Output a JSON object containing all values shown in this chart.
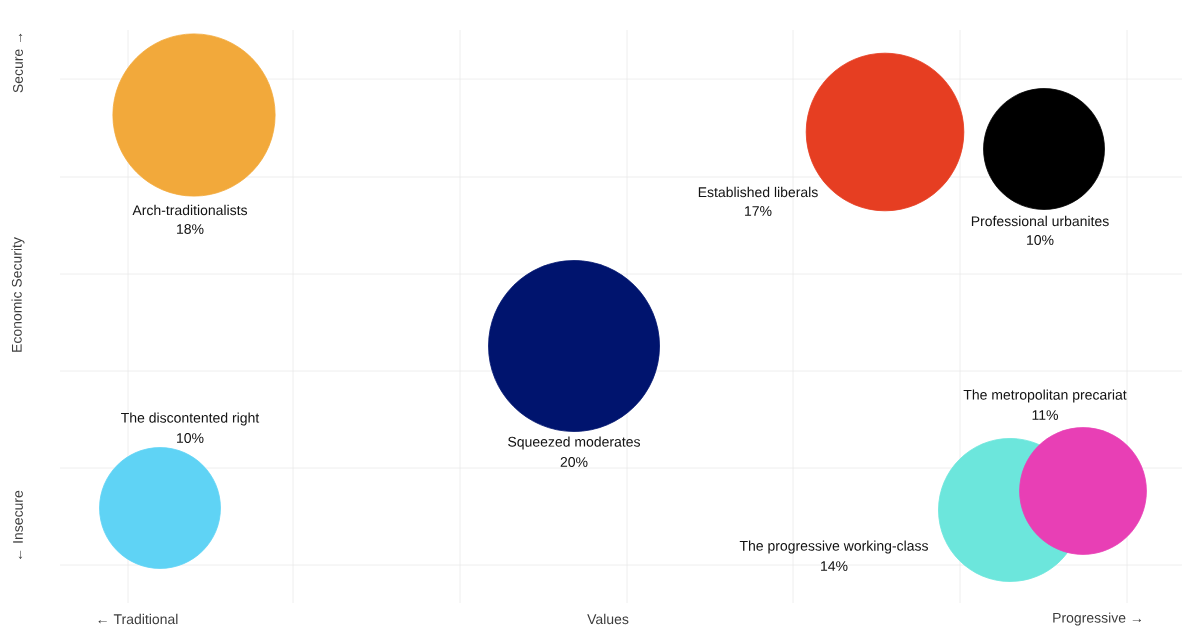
{
  "chart_data": {
    "type": "other",
    "xlabel": "Values",
    "ylabel": "Economic Security",
    "annotations": [
      "← Traditional",
      "Progressive →",
      "Secure →",
      "← Insecure"
    ],
    "categories": [
      "Arch-traditionalists",
      "Established liberals",
      "Professional urbanites",
      "Squeezed moderates",
      "The discontented right",
      "The progressive working-class",
      "The metropolitan precariat"
    ],
    "values": [
      18,
      17,
      10,
      20,
      10,
      14,
      11
    ],
    "value_labels": [
      "18%",
      "17%",
      "10%",
      "20%",
      "10%",
      "14%",
      "11%"
    ],
    "colors": [
      "#f2a93b",
      "#e63e22",
      "#000000",
      "#00146e",
      "#5fd3f5",
      "#6ce6dc",
      "#e83fb5"
    ]
  }
}
